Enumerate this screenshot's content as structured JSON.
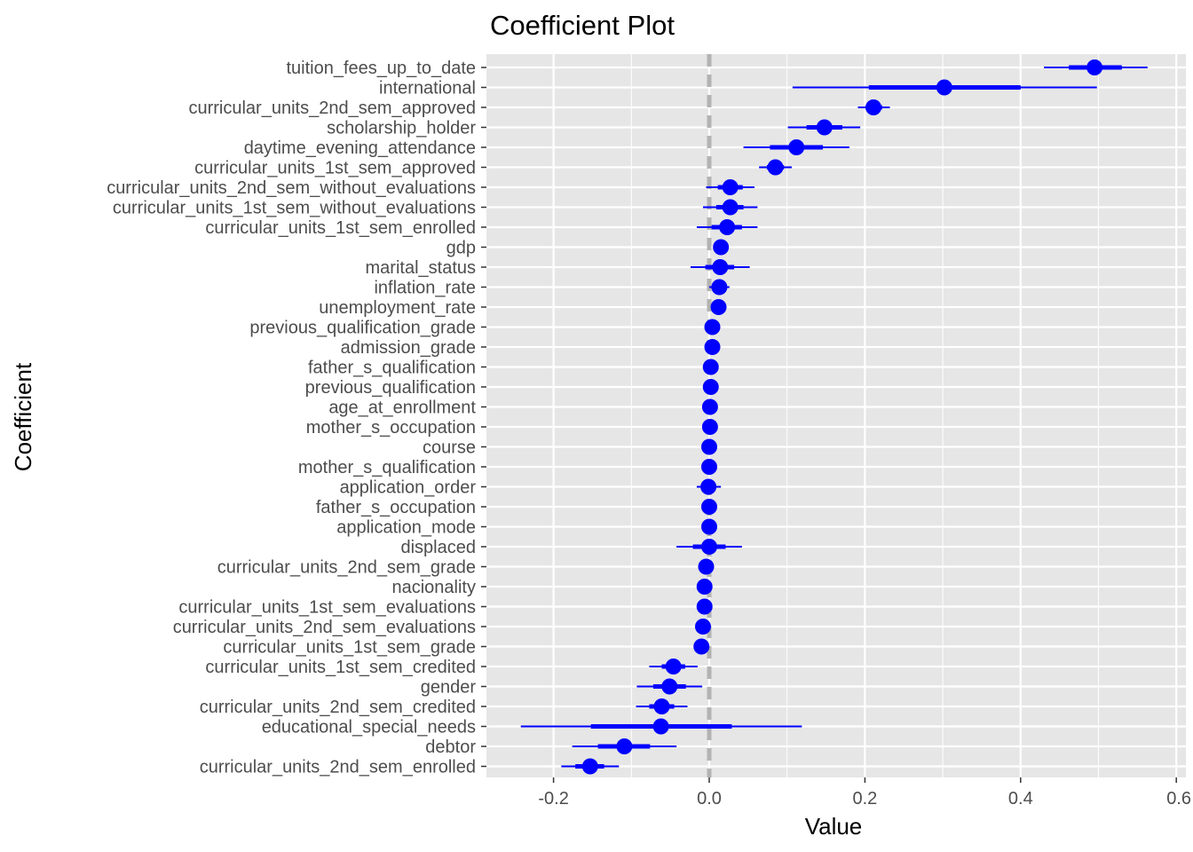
{
  "colors": {
    "panel": "#e6e6e6",
    "grid": "#ffffff",
    "point": "#0000ff",
    "zero_line": "#b3b3b3",
    "tick_text": "#4d4d4d"
  },
  "chart_data": {
    "type": "scatter",
    "title": "Coefficient Plot",
    "xlabel": "Value",
    "ylabel": "Coefficient",
    "xlim": [
      -0.285,
      0.6
    ],
    "x_ticks": [
      -0.2,
      0.0,
      0.2,
      0.4,
      0.6
    ],
    "x_tick_labels": [
      "-0.2",
      "0.0",
      "0.2",
      "0.4",
      "0.6"
    ],
    "grid": true,
    "zero_line": 0,
    "legend": "none",
    "coefficients": [
      {
        "name": "tuition_fees_up_to_date",
        "value": 0.495,
        "inner": [
          0.462,
          0.53
        ],
        "outer": [
          0.43,
          0.563
        ]
      },
      {
        "name": "international",
        "value": 0.302,
        "inner": [
          0.205,
          0.4
        ],
        "outer": [
          0.107,
          0.498
        ]
      },
      {
        "name": "curricular_units_2nd_sem_approved",
        "value": 0.211,
        "inner": [
          0.201,
          0.222
        ],
        "outer": [
          0.191,
          0.232
        ]
      },
      {
        "name": "scholarship_holder",
        "value": 0.148,
        "inner": [
          0.125,
          0.171
        ],
        "outer": [
          0.101,
          0.194
        ]
      },
      {
        "name": "daytime_evening_attendance",
        "value": 0.112,
        "inner": [
          0.078,
          0.146
        ],
        "outer": [
          0.044,
          0.18
        ]
      },
      {
        "name": "curricular_units_1st_sem_approved",
        "value": 0.085,
        "inner": [
          0.074,
          0.096
        ],
        "outer": [
          0.064,
          0.106
        ]
      },
      {
        "name": "curricular_units_2nd_sem_without_evaluations",
        "value": 0.027,
        "inner": [
          0.011,
          0.043
        ],
        "outer": [
          -0.004,
          0.058
        ]
      },
      {
        "name": "curricular_units_1st_sem_without_evaluations",
        "value": 0.027,
        "inner": [
          0.009,
          0.044
        ],
        "outer": [
          -0.008,
          0.062
        ]
      },
      {
        "name": "curricular_units_1st_sem_enrolled",
        "value": 0.023,
        "inner": [
          0.003,
          0.042
        ],
        "outer": [
          -0.016,
          0.062
        ]
      },
      {
        "name": "gdp",
        "value": 0.015,
        "inner": [
          0.011,
          0.019
        ],
        "outer": [
          0.007,
          0.023
        ]
      },
      {
        "name": "marital_status",
        "value": 0.014,
        "inner": [
          -0.005,
          0.032
        ],
        "outer": [
          -0.024,
          0.052
        ]
      },
      {
        "name": "inflation_rate",
        "value": 0.013,
        "inner": [
          0.006,
          0.019
        ],
        "outer": [
          0.0,
          0.026
        ]
      },
      {
        "name": "unemployment_rate",
        "value": 0.012,
        "inner": [
          0.008,
          0.016
        ],
        "outer": [
          0.004,
          0.02
        ]
      },
      {
        "name": "previous_qualification_grade",
        "value": 0.004,
        "inner": [
          0.002,
          0.006
        ],
        "outer": [
          0.0,
          0.008
        ]
      },
      {
        "name": "admission_grade",
        "value": 0.004,
        "inner": [
          0.002,
          0.006
        ],
        "outer": [
          0.0,
          0.008
        ]
      },
      {
        "name": "father_s_qualification",
        "value": 0.002,
        "inner": [
          0.0,
          0.004
        ],
        "outer": [
          -0.002,
          0.006
        ]
      },
      {
        "name": "previous_qualification",
        "value": 0.002,
        "inner": [
          0.0,
          0.004
        ],
        "outer": [
          -0.002,
          0.006
        ]
      },
      {
        "name": "age_at_enrollment",
        "value": 0.001,
        "inner": [
          -0.001,
          0.003
        ],
        "outer": [
          -0.003,
          0.005
        ]
      },
      {
        "name": "mother_s_occupation",
        "value": 0.001,
        "inner": [
          -0.001,
          0.003
        ],
        "outer": [
          -0.003,
          0.005
        ]
      },
      {
        "name": "course",
        "value": 0.0,
        "inner": [
          -0.002,
          0.002
        ],
        "outer": [
          -0.004,
          0.004
        ]
      },
      {
        "name": "mother_s_qualification",
        "value": 0.0,
        "inner": [
          -0.002,
          0.002
        ],
        "outer": [
          -0.004,
          0.004
        ]
      },
      {
        "name": "application_order",
        "value": -0.001,
        "inner": [
          -0.008,
          0.007
        ],
        "outer": [
          -0.016,
          0.015
        ]
      },
      {
        "name": "father_s_occupation",
        "value": 0.0,
        "inner": [
          -0.002,
          0.002
        ],
        "outer": [
          -0.004,
          0.004
        ]
      },
      {
        "name": "application_mode",
        "value": 0.0,
        "inner": [
          -0.002,
          0.002
        ],
        "outer": [
          -0.004,
          0.004
        ]
      },
      {
        "name": "displaced",
        "value": 0.0,
        "inner": [
          -0.021,
          0.021
        ],
        "outer": [
          -0.042,
          0.042
        ]
      },
      {
        "name": "curricular_units_2nd_sem_grade",
        "value": -0.004,
        "inner": [
          -0.006,
          -0.002
        ],
        "outer": [
          -0.008,
          0.0
        ]
      },
      {
        "name": "nacionality",
        "value": -0.006,
        "inner": [
          -0.008,
          -0.004
        ],
        "outer": [
          -0.01,
          -0.002
        ]
      },
      {
        "name": "curricular_units_1st_sem_evaluations",
        "value": -0.006,
        "inner": [
          -0.008,
          -0.004
        ],
        "outer": [
          -0.01,
          -0.002
        ]
      },
      {
        "name": "curricular_units_2nd_sem_evaluations",
        "value": -0.008,
        "inner": [
          -0.01,
          -0.006
        ],
        "outer": [
          -0.012,
          -0.004
        ]
      },
      {
        "name": "curricular_units_1st_sem_grade",
        "value": -0.01,
        "inner": [
          -0.012,
          -0.008
        ],
        "outer": [
          -0.014,
          -0.006
        ]
      },
      {
        "name": "curricular_units_1st_sem_credited",
        "value": -0.046,
        "inner": [
          -0.061,
          -0.031
        ],
        "outer": [
          -0.077,
          -0.015
        ]
      },
      {
        "name": "gender",
        "value": -0.051,
        "inner": [
          -0.072,
          -0.03
        ],
        "outer": [
          -0.093,
          -0.009
        ]
      },
      {
        "name": "curricular_units_2nd_sem_credited",
        "value": -0.061,
        "inner": [
          -0.077,
          -0.045
        ],
        "outer": [
          -0.094,
          -0.028
        ]
      },
      {
        "name": "educational_special_needs",
        "value": -0.062,
        "inner": [
          -0.152,
          0.029
        ],
        "outer": [
          -0.242,
          0.119
        ]
      },
      {
        "name": "debtor",
        "value": -0.109,
        "inner": [
          -0.143,
          -0.076
        ],
        "outer": [
          -0.176,
          -0.042
        ]
      },
      {
        "name": "curricular_units_2nd_sem_enrolled",
        "value": -0.153,
        "inner": [
          -0.172,
          -0.135
        ],
        "outer": [
          -0.19,
          -0.116
        ]
      }
    ]
  }
}
